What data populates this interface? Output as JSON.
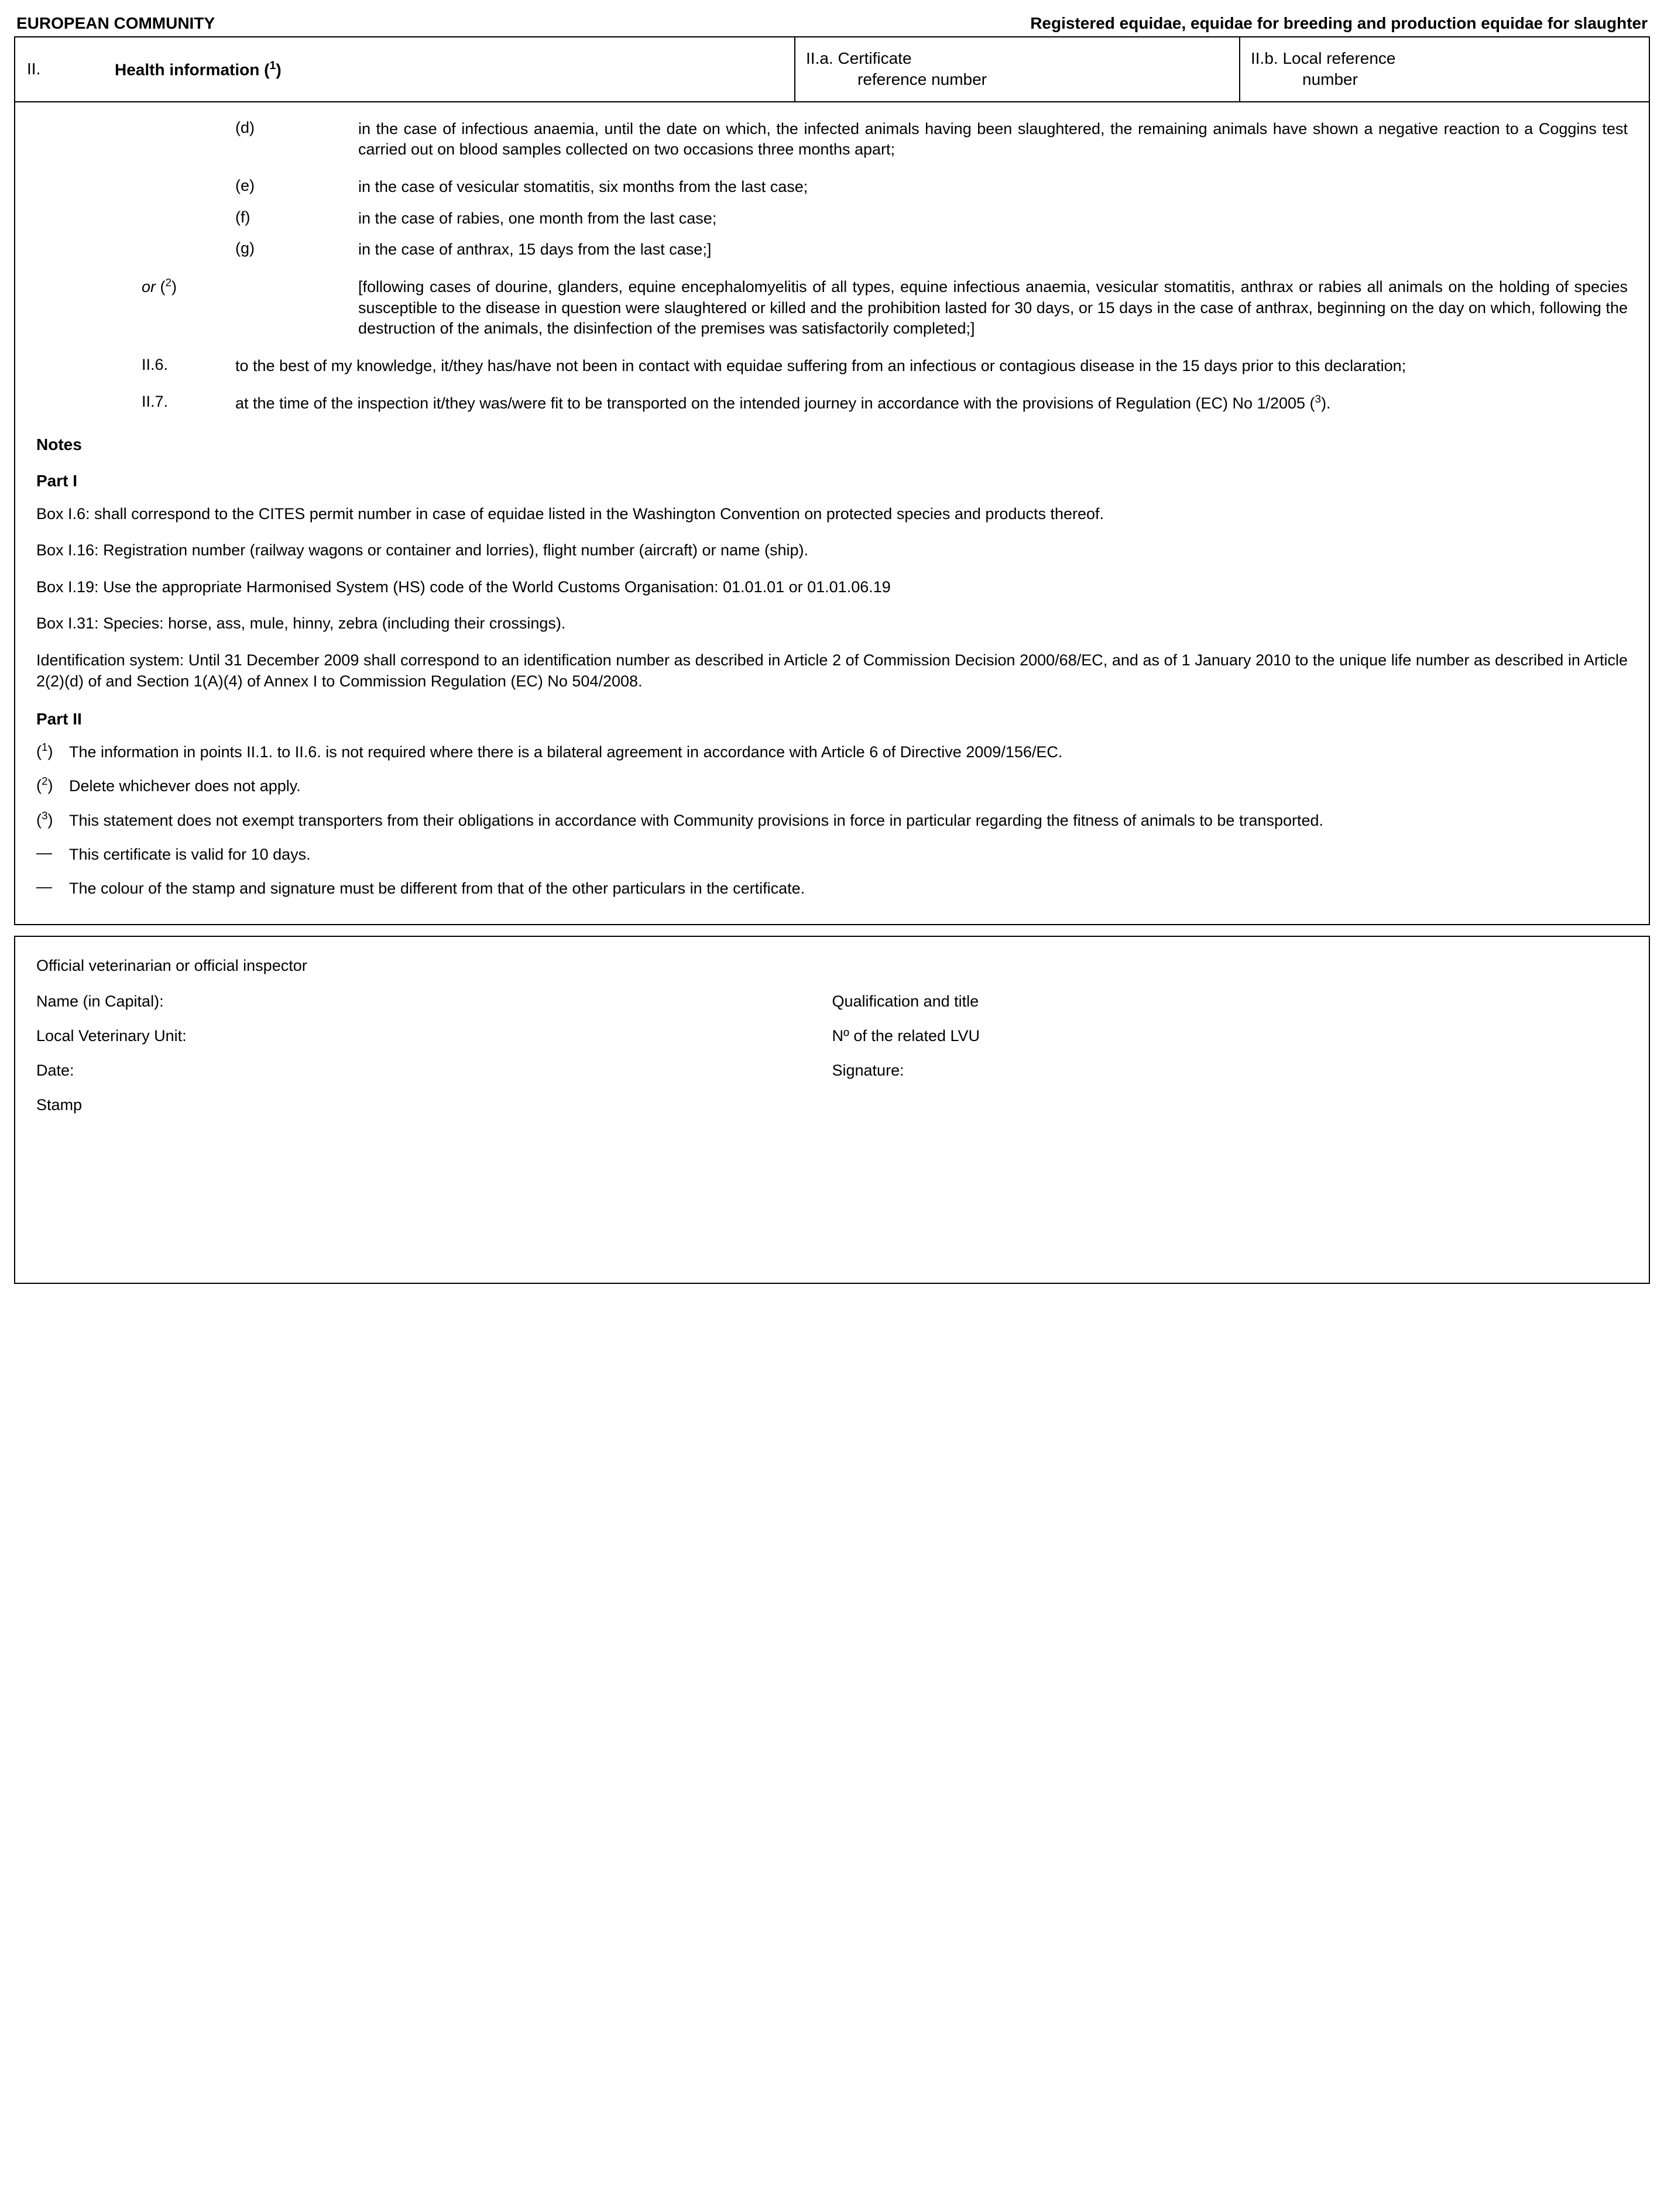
{
  "topbar": {
    "left": "EUROPEAN COMMUNITY",
    "right": "Registered equidae, equidae for breeding and production equidae for slaughter"
  },
  "header": {
    "roman": "II.",
    "title": "Health information",
    "title_sup": "1",
    "mid_label": "II.a.",
    "mid_text1": "Certificate",
    "mid_text2": "reference number",
    "right_label": "II.b.",
    "right_text1": "Local reference",
    "right_text2": "number"
  },
  "items": {
    "d": {
      "label": "(d)",
      "text": "in the case of infectious anaemia, until the date on which, the infected animals having been slaughtered, the remaining animals have shown a negative reaction to a Coggins test carried out on blood samples collected on two occasions three months apart;"
    },
    "e": {
      "label": "(e)",
      "text": "in the case of vesicular stomatitis, six months from the last case;"
    },
    "f": {
      "label": "(f)",
      "text": "in the case of rabies, one month from the last case;"
    },
    "g": {
      "label": "(g)",
      "text": "in the case of anthrax, 15 days from the last case;]"
    },
    "or_label_prefix": "or",
    "or_sup": "2",
    "or_text": "[following cases of dourine, glanders, equine encephalomyelitis of all types, equine infectious anaemia, vesicular stomatitis, anthrax or rabies all animals on the holding of species susceptible to the disease in question were slaughtered or killed and the prohibition lasted for 30 days, or 15 days in the case of anthrax, beginning on the day on which, following the destruction of the animals, the disinfection of the premises was satisfactorily completed;]",
    "ii6_label": "II.6.",
    "ii6_text": "to the best of my knowledge, it/they has/have not been in contact with equidae suffering from an infectious or contagious disease in the 15 days prior to this declaration;",
    "ii7_label": "II.7.",
    "ii7_text_pre": "at the time of the inspection it/they was/were fit to be transported on the intended journey in accordance with the provisions of Regulation (EC) No 1/2005 (",
    "ii7_sup": "3",
    "ii7_text_post": ")."
  },
  "notes_heading": "Notes",
  "part1_heading": "Part I",
  "part1": {
    "p1": "Box I.6: shall correspond to the CITES permit number in case of equidae listed in the Washington Convention on protected species and products thereof.",
    "p2": "Box I.16: Registration number (railway wagons or container and lorries), flight number (aircraft) or name (ship).",
    "p3": "Box I.19: Use the appropriate Harmonised System (HS) code of the World Customs Organisation: 01.01.01 or 01.01.06.19",
    "p4": "Box I.31: Species: horse, ass, mule, hinny, zebra (including their crossings).",
    "p5": "Identification system: Until 31 December 2009 shall correspond to an identification number as described in Article 2 of Commission Decision 2000/68/EC, and as of 1 January 2010 to the unique life number as described in Article 2(2)(d) of and Section 1(A)(4) of Annex I to Commission Regulation (EC) No 504/2008."
  },
  "part2_heading": "Part II",
  "part2": {
    "n1_sup": "1",
    "n1_text": "The information in points II.1. to II.6. is not required where there is a bilateral agreement in accordance with Article 6 of Directive 2009/156/EC.",
    "n2_sup": "2",
    "n2_text": "Delete whichever does not apply.",
    "n3_sup": "3",
    "n3_text": "This statement does not exempt transporters from their obligations in accordance with Community provisions in force in particular regarding the fitness of animals to be transported.",
    "dash1": "This certificate is valid for 10 days.",
    "dash2": "The colour of the stamp and signature must be different from that of the other particulars in the certificate."
  },
  "sig": {
    "title": "Official veterinarian or official inspector",
    "name": "Name (in Capital):",
    "qual": "Qualification and title",
    "lvu": "Local Veterinary Unit:",
    "lvu_no": "Nº of the related LVU",
    "date": "Date:",
    "signature": "Signature:",
    "stamp": "Stamp"
  },
  "glyphs": {
    "dash": "—",
    "open_paren": "(",
    "close_paren": ") "
  }
}
